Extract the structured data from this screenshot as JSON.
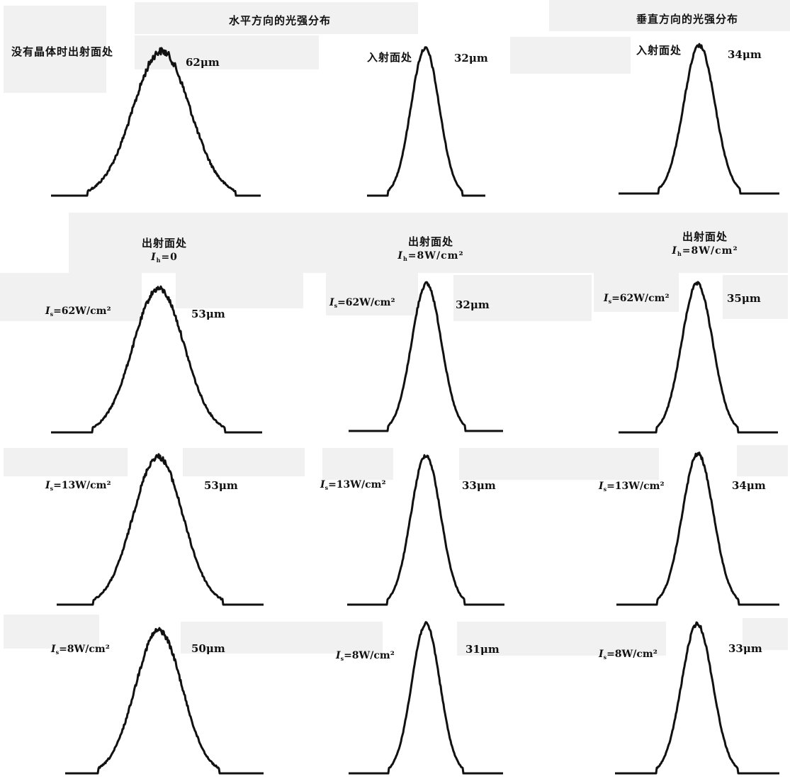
{
  "headers": {
    "horizontal": "水平方向的光强分布",
    "vertical": "垂直方向的光强分布"
  },
  "row_labels": {
    "row1_left": "没有晶体时出射面处",
    "row1_mid": "入射面处",
    "row1_right": "入射面处",
    "exit": "出射面处",
    "ih0": "=0",
    "ih8": "=8W/cm²"
  },
  "symbols": {
    "Is": "I",
    "Is_sub": "s",
    "Ih_sub": "h"
  },
  "intensity_labels": {
    "is62": "=62W/cm²",
    "is13": "=13W/cm²",
    "is8": "=8W/cm²"
  },
  "widths": {
    "r1c1": "62μm",
    "r1c2": "32μm",
    "r1c3": "34μm",
    "r2c1": "53μm",
    "r2c2": "32μm",
    "r2c3": "35μm",
    "r3c1": "53μm",
    "r3c2": "33μm",
    "r3c3": "34μm",
    "r4c1": "50μm",
    "r4c2": "31μm",
    "r4c3": "33μm"
  },
  "colors": {
    "stroke": "#111111",
    "patch": "#f1f1f1"
  },
  "chart_data": [
    {
      "type": "line",
      "id": "r1c1",
      "title": "没有晶体时出射面处",
      "beam_width": "62μm",
      "peak_x": 228,
      "sigma": 40,
      "noise": 4.0
    },
    {
      "type": "line",
      "id": "r1c2",
      "title": "入射面处",
      "beam_width": "32μm",
      "peak_x": 600,
      "sigma": 20,
      "noise": 2.0
    },
    {
      "type": "line",
      "id": "r1c3",
      "title": "入射面处",
      "beam_width": "34μm",
      "peak_x": 987,
      "sigma": 22,
      "noise": 2.0
    },
    {
      "type": "line",
      "id": "r2c1",
      "beam_width": "53μm",
      "peak_x": 224,
      "sigma": 36,
      "noise": 3.0
    },
    {
      "type": "line",
      "id": "r2c2",
      "beam_width": "32μm",
      "peak_x": 602,
      "sigma": 21,
      "noise": 2.0
    },
    {
      "type": "line",
      "id": "r2c3",
      "beam_width": "35μm",
      "peak_x": 984,
      "sigma": 22,
      "noise": 2.0
    },
    {
      "type": "line",
      "id": "r3c1",
      "beam_width": "53μm",
      "peak_x": 223,
      "sigma": 35,
      "noise": 3.0
    },
    {
      "type": "line",
      "id": "r3c2",
      "beam_width": "33μm",
      "peak_x": 601,
      "sigma": 21,
      "noise": 2.0
    },
    {
      "type": "line",
      "id": "r3c3",
      "beam_width": "34μm",
      "peak_x": 985,
      "sigma": 22,
      "noise": 2.0
    },
    {
      "type": "line",
      "id": "r4c1",
      "beam_width": "50μm",
      "peak_x": 224,
      "sigma": 33,
      "noise": 3.0
    },
    {
      "type": "line",
      "id": "r4c2",
      "beam_width": "31μm",
      "peak_x": 601,
      "sigma": 20,
      "noise": 2.0
    },
    {
      "type": "line",
      "id": "r4c3",
      "beam_width": "33μm",
      "peak_x": 984,
      "sigma": 22,
      "noise": 2.0
    }
  ]
}
